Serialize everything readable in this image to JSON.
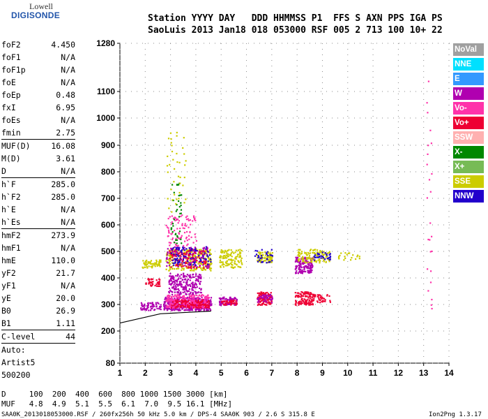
{
  "logo": {
    "line1": "Lowell",
    "line2": "DIGISONDE"
  },
  "header": {
    "line1": "Station YYYY DAY   DDD HHMMSS P1  FFS S AXN PPS IGA PS",
    "line2": "SaoLuis 2013 Jan18 018 053000 RSF 005 2 713 100 10+ 22"
  },
  "params": [
    {
      "k": "foF2",
      "v": "4.450"
    },
    {
      "k": "foF1",
      "v": "N/A"
    },
    {
      "k": "foF1p",
      "v": "N/A"
    },
    {
      "k": "foE",
      "v": "N/A"
    },
    {
      "k": "foEp",
      "v": "0.48"
    },
    {
      "k": "fxI",
      "v": "6.95"
    },
    {
      "k": "foEs",
      "v": "N/A"
    },
    {
      "k": "fmin",
      "v": "2.75"
    },
    {
      "k": "MUF(D)",
      "v": "16.08",
      "sep": true
    },
    {
      "k": "M(D)",
      "v": "3.61"
    },
    {
      "k": "D",
      "v": "N/A"
    },
    {
      "k": "h`F",
      "v": "285.0",
      "sep": true
    },
    {
      "k": "h`F2",
      "v": "285.0"
    },
    {
      "k": "h`E",
      "v": "N/A"
    },
    {
      "k": "h`Es",
      "v": "N/A"
    },
    {
      "k": "hmF2",
      "v": "273.9",
      "sep": true
    },
    {
      "k": "hmF1",
      "v": "N/A"
    },
    {
      "k": "hmE",
      "v": "110.0"
    },
    {
      "k": "yF2",
      "v": "21.7"
    },
    {
      "k": "yF1",
      "v": "N/A"
    },
    {
      "k": "yE",
      "v": "20.0"
    },
    {
      "k": "B0",
      "v": "26.9"
    },
    {
      "k": "B1",
      "v": "1.11"
    },
    {
      "k": "C-level",
      "v": "44",
      "sep": true
    },
    {
      "k": "Auto:",
      "v": "",
      "sep": true
    },
    {
      "k": "Artist5",
      "v": ""
    },
    {
      "k": "500200",
      "v": ""
    }
  ],
  "legend": [
    {
      "label": "NoVal",
      "color": "#a0a0a0"
    },
    {
      "label": "NNE",
      "color": "#00e0ff"
    },
    {
      "label": "E",
      "color": "#3399ff"
    },
    {
      "label": "W",
      "color": "#b000b0"
    },
    {
      "label": "Vo-",
      "color": "#ff33aa"
    },
    {
      "label": "Vo+",
      "color": "#ee0033"
    },
    {
      "label": "SSW",
      "color": "#ffb0b0"
    },
    {
      "label": "X-",
      "color": "#008800"
    },
    {
      "label": "X+",
      "color": "#77bb55"
    },
    {
      "label": "SSE",
      "color": "#cccc00"
    },
    {
      "label": "NNW",
      "color": "#2200cc"
    }
  ],
  "footer": {
    "line1": "D     100  200  400  600  800 1000 1500 3000 [km]",
    "line2": "MUF   4.8  4.9  5.1  5.5  6.1  7.0  9.5 16.1 [MHz]",
    "file": "SAA0K_2013018053000.RSF / 260fx256h 50 kHz 5.0 km / DPS-4 SAA0K 903 / 2.6 S 315.8 E",
    "version": "Ion2Png 1.3.17"
  },
  "chart_data": {
    "type": "scatter",
    "x_ticks": [
      1,
      2,
      3,
      4,
      5,
      6,
      7,
      8,
      9,
      10,
      11,
      12,
      13,
      14
    ],
    "y_ticks": [
      80,
      200,
      300,
      400,
      500,
      600,
      700,
      800,
      900,
      1000,
      1100,
      1280
    ],
    "xlim": [
      1,
      14
    ],
    "ylim": [
      80,
      1280
    ],
    "y_scale": "nonlinear (virtual height)",
    "clusters": [
      {
        "color": "#b000b0",
        "x": [
          2.7,
          4.6
        ],
        "y": [
          280,
          330
        ],
        "n": 420
      },
      {
        "color": "#ff33aa",
        "x": [
          2.8,
          4.5
        ],
        "y": [
          290,
          340
        ],
        "n": 260
      },
      {
        "color": "#ee0033",
        "x": [
          3.0,
          4.5
        ],
        "y": [
          290,
          320
        ],
        "n": 120
      },
      {
        "color": "#b000b0",
        "x": [
          2.9,
          4.2
        ],
        "y": [
          340,
          420
        ],
        "n": 220
      },
      {
        "color": "#cccc00",
        "x": [
          2.8,
          4.6
        ],
        "y": [
          430,
          510
        ],
        "n": 260
      },
      {
        "color": "#b000b0",
        "x": [
          2.8,
          4.5
        ],
        "y": [
          440,
          520
        ],
        "n": 140
      },
      {
        "color": "#ee0033",
        "x": [
          2.9,
          4.4
        ],
        "y": [
          440,
          510
        ],
        "n": 100
      },
      {
        "color": "#2200cc",
        "x": [
          3.0,
          4.6
        ],
        "y": [
          450,
          520
        ],
        "n": 80
      },
      {
        "color": "#ff33aa",
        "x": [
          2.8,
          4.0
        ],
        "y": [
          520,
          640
        ],
        "n": 90
      },
      {
        "color": "#008800",
        "x": [
          3.0,
          3.4
        ],
        "y": [
          520,
          760
        ],
        "n": 40
      },
      {
        "color": "#cccc00",
        "x": [
          2.8,
          3.6
        ],
        "y": [
          650,
          950
        ],
        "n": 40
      },
      {
        "color": "#cccc00",
        "x": [
          4.9,
          5.8
        ],
        "y": [
          440,
          510
        ],
        "n": 120
      },
      {
        "color": "#b000b0",
        "x": [
          4.9,
          5.6
        ],
        "y": [
          300,
          330
        ],
        "n": 90
      },
      {
        "color": "#ee0033",
        "x": [
          5.0,
          5.6
        ],
        "y": [
          300,
          320
        ],
        "n": 40
      },
      {
        "color": "#cccc00",
        "x": [
          6.4,
          7.0
        ],
        "y": [
          460,
          500
        ],
        "n": 90
      },
      {
        "color": "#2200cc",
        "x": [
          6.3,
          7.0
        ],
        "y": [
          460,
          510
        ],
        "n": 30
      },
      {
        "color": "#ee0033",
        "x": [
          6.4,
          7.0
        ],
        "y": [
          300,
          350
        ],
        "n": 110
      },
      {
        "color": "#b000b0",
        "x": [
          6.4,
          7.0
        ],
        "y": [
          310,
          340
        ],
        "n": 40
      },
      {
        "color": "#b000b0",
        "x": [
          7.9,
          8.6
        ],
        "y": [
          420,
          480
        ],
        "n": 160
      },
      {
        "color": "#cccc00",
        "x": [
          8.0,
          9.3
        ],
        "y": [
          460,
          510
        ],
        "n": 120
      },
      {
        "color": "#ee0033",
        "x": [
          7.9,
          8.6
        ],
        "y": [
          300,
          350
        ],
        "n": 120
      },
      {
        "color": "#2200cc",
        "x": [
          8.6,
          9.3
        ],
        "y": [
          470,
          500
        ],
        "n": 30
      },
      {
        "color": "#ee0033",
        "x": [
          8.6,
          9.3
        ],
        "y": [
          310,
          340
        ],
        "n": 40
      },
      {
        "color": "#b000b0",
        "x": [
          1.8,
          2.6
        ],
        "y": [
          280,
          310
        ],
        "n": 70
      },
      {
        "color": "#ee0033",
        "x": [
          2.0,
          2.6
        ],
        "y": [
          370,
          400
        ],
        "n": 40
      },
      {
        "color": "#cccc00",
        "x": [
          1.8,
          2.6
        ],
        "y": [
          440,
          470
        ],
        "n": 60
      },
      {
        "color": "#ff33aa",
        "x": [
          13.1,
          13.3
        ],
        "y": [
          240,
          1150
        ],
        "n": 25
      },
      {
        "color": "#cccc00",
        "x": [
          9.6,
          10.5
        ],
        "y": [
          470,
          500
        ],
        "n": 20
      }
    ],
    "trace": {
      "color": "#000000",
      "points": [
        [
          1,
          230
        ],
        [
          2.6,
          265
        ],
        [
          4.6,
          275
        ]
      ]
    }
  }
}
